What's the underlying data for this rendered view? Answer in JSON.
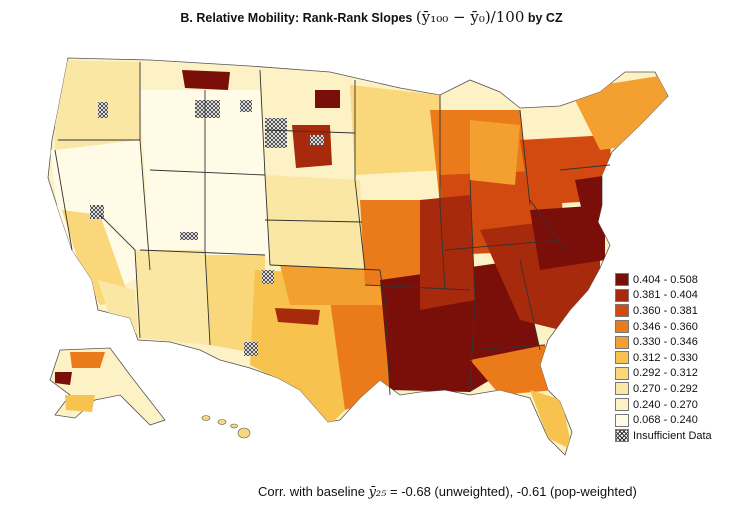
{
  "title": {
    "prefix": "B. Relative Mobility: Rank-Rank Slopes",
    "formula": "(ȳ₁₀₀ − ȳ₀)/100",
    "suffix": "by CZ"
  },
  "legend": {
    "items": [
      {
        "label": "0.404 - 0.508",
        "color": "#7a0f0a"
      },
      {
        "label": "0.381 - 0.404",
        "color": "#a82a0c"
      },
      {
        "label": "0.360 - 0.381",
        "color": "#d24a10"
      },
      {
        "label": "0.346 - 0.360",
        "color": "#ea7a1a"
      },
      {
        "label": "0.330 - 0.346",
        "color": "#f3a030"
      },
      {
        "label": "0.312 - 0.330",
        "color": "#f7c24e"
      },
      {
        "label": "0.292 - 0.312",
        "color": "#f9d77a"
      },
      {
        "label": "0.270 - 0.292",
        "color": "#fbe7a4"
      },
      {
        "label": "0.240 - 0.270",
        "color": "#fdf1c6"
      },
      {
        "label": "0.068 - 0.240",
        "color": "#fffbe6"
      }
    ],
    "insufficient_label": "Insufficient Data"
  },
  "footnote": {
    "prefix": "Corr. with baseline",
    "var": "ȳ₂₅",
    "suffix": "= -0.68 (unweighted), -0.61 (pop-weighted)"
  }
}
